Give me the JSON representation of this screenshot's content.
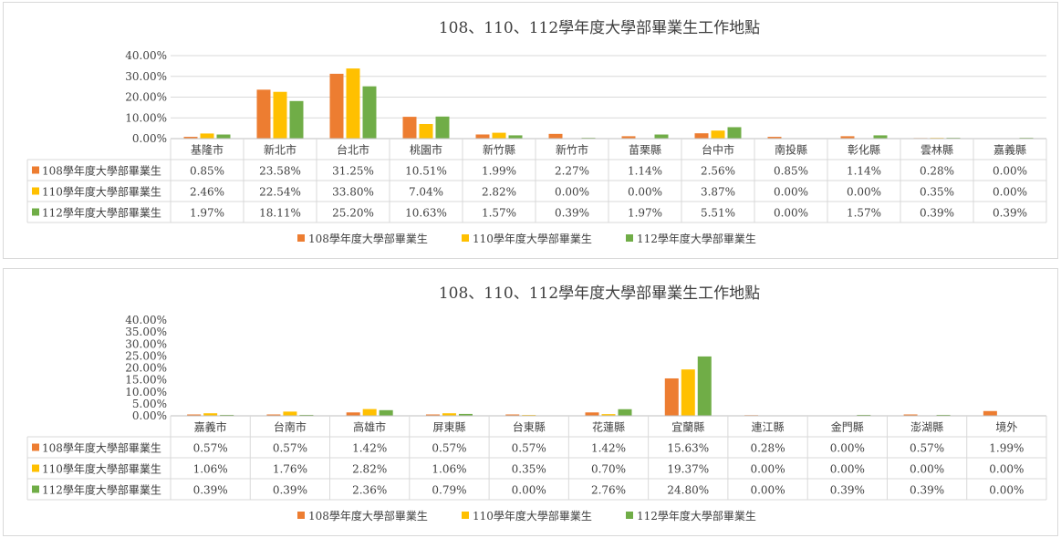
{
  "colors": {
    "s108": "#ED7D31",
    "s110": "#FFC000",
    "s112": "#70AD47"
  },
  "chart_data": [
    {
      "type": "bar",
      "title": "108、110、112學年度大學部畢業生工作地點",
      "categories": [
        "基隆市",
        "新北市",
        "台北市",
        "桃園市",
        "新竹縣",
        "新竹市",
        "苗栗縣",
        "台中市",
        "南投縣",
        "彰化縣",
        "雲林縣",
        "嘉義縣"
      ],
      "series": [
        {
          "name": "108學年度大學部畢業生",
          "color": "#ED7D31",
          "values": [
            0.85,
            23.58,
            31.25,
            10.51,
            1.99,
            2.27,
            1.14,
            2.56,
            0.85,
            1.14,
            0.28,
            0.0
          ],
          "labels": [
            "0.85%",
            "23.58%",
            "31.25%",
            "10.51%",
            "1.99%",
            "2.27%",
            "1.14%",
            "2.56%",
            "0.85%",
            "1.14%",
            "0.28%",
            "0.00%"
          ]
        },
        {
          "name": "110學年度大學部畢業生",
          "color": "#FFC000",
          "values": [
            2.46,
            22.54,
            33.8,
            7.04,
            2.82,
            0.0,
            0.0,
            3.87,
            0.0,
            0.0,
            0.35,
            0.0
          ],
          "labels": [
            "2.46%",
            "22.54%",
            "33.80%",
            "7.04%",
            "2.82%",
            "0.00%",
            "0.00%",
            "3.87%",
            "0.00%",
            "0.00%",
            "0.35%",
            "0.00%"
          ]
        },
        {
          "name": "112學年度大學部畢業生",
          "color": "#70AD47",
          "values": [
            1.97,
            18.11,
            25.2,
            10.63,
            1.57,
            0.39,
            1.97,
            5.51,
            0.0,
            1.57,
            0.39,
            0.39
          ],
          "labels": [
            "1.97%",
            "18.11%",
            "25.20%",
            "10.63%",
            "1.57%",
            "0.39%",
            "1.97%",
            "5.51%",
            "0.00%",
            "1.57%",
            "0.39%",
            "0.39%"
          ]
        }
      ],
      "ylim": [
        0,
        40
      ],
      "yticks": [
        "0.00%",
        "10.00%",
        "20.00%",
        "30.00%",
        "40.00%"
      ],
      "grid": true,
      "legend": "bottom",
      "data_table": true
    },
    {
      "type": "bar",
      "title": "108、110、112學年度大學部畢業生工作地點",
      "categories": [
        "嘉義市",
        "台南市",
        "高雄市",
        "屏東縣",
        "台東縣",
        "花蓮縣",
        "宜蘭縣",
        "連江縣",
        "金門縣",
        "澎湖縣",
        "境外"
      ],
      "series": [
        {
          "name": "108學年度大學部畢業生",
          "color": "#ED7D31",
          "values": [
            0.57,
            0.57,
            1.42,
            0.57,
            0.57,
            1.42,
            15.63,
            0.28,
            0.0,
            0.57,
            1.99
          ],
          "labels": [
            "0.57%",
            "0.57%",
            "1.42%",
            "0.57%",
            "0.57%",
            "1.42%",
            "15.63%",
            "0.28%",
            "0.00%",
            "0.57%",
            "1.99%"
          ]
        },
        {
          "name": "110學年度大學部畢業生",
          "color": "#FFC000",
          "values": [
            1.06,
            1.76,
            2.82,
            1.06,
            0.35,
            0.7,
            19.37,
            0.0,
            0.0,
            0.0,
            0.0
          ],
          "labels": [
            "1.06%",
            "1.76%",
            "2.82%",
            "1.06%",
            "0.35%",
            "0.70%",
            "19.37%",
            "0.00%",
            "0.00%",
            "0.00%",
            "0.00%"
          ]
        },
        {
          "name": "112學年度大學部畢業生",
          "color": "#70AD47",
          "values": [
            0.39,
            0.39,
            2.36,
            0.79,
            0.0,
            2.76,
            24.8,
            0.0,
            0.39,
            0.39,
            0.0
          ],
          "labels": [
            "0.39%",
            "0.39%",
            "2.36%",
            "0.79%",
            "0.00%",
            "2.76%",
            "24.80%",
            "0.00%",
            "0.39%",
            "0.39%",
            "0.00%"
          ]
        }
      ],
      "ylim": [
        0,
        40
      ],
      "yticks": [
        "0.00%",
        "5.00%",
        "10.00%",
        "15.00%",
        "20.00%",
        "25.00%",
        "30.00%",
        "35.00%",
        "40.00%"
      ],
      "grid": false,
      "legend": "bottom",
      "data_table": true
    }
  ]
}
